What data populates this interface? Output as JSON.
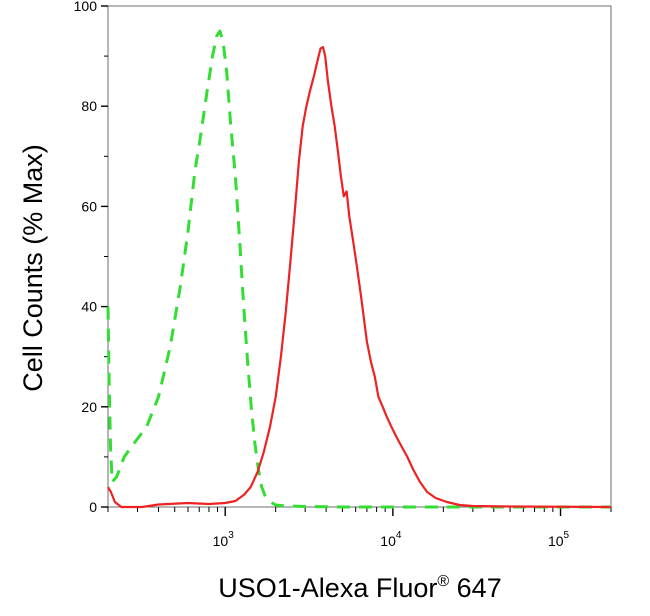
{
  "chart_data": {
    "type": "line",
    "title": "",
    "xlabel": {
      "main": "USO1-Alexa Fluor",
      "sup": "®",
      "tail": " 647"
    },
    "ylabel": "Cell Counts (% Max)",
    "x_scale": "log",
    "xlim": [
      200,
      200000
    ],
    "ylim": [
      0,
      100
    ],
    "y_ticks": [
      {
        "value": 0,
        "label": "0"
      },
      {
        "value": 20,
        "label": "20"
      },
      {
        "value": 40,
        "label": "40"
      },
      {
        "value": 60,
        "label": "60"
      },
      {
        "value": 80,
        "label": "80"
      },
      {
        "value": 100,
        "label": "100"
      }
    ],
    "x_major_ticks": [
      {
        "value": 1000,
        "base": "10",
        "exp": "3"
      },
      {
        "value": 10000,
        "base": "10",
        "exp": "4"
      },
      {
        "value": 100000,
        "base": "10",
        "exp": "5"
      }
    ],
    "grid": false,
    "legend": "none",
    "series": [
      {
        "color": "#33dd33",
        "style": "dashed",
        "points": [
          [
            200,
            40
          ],
          [
            203,
            25
          ],
          [
            207,
            12
          ],
          [
            212,
            5
          ],
          [
            225,
            6
          ],
          [
            250,
            10
          ],
          [
            290,
            13
          ],
          [
            340,
            16
          ],
          [
            400,
            22
          ],
          [
            470,
            32
          ],
          [
            540,
            44
          ],
          [
            600,
            55
          ],
          [
            660,
            67
          ],
          [
            720,
            75
          ],
          [
            780,
            83
          ],
          [
            840,
            90
          ],
          [
            890,
            94
          ],
          [
            930,
            95
          ],
          [
            970,
            93
          ],
          [
            1020,
            87
          ],
          [
            1080,
            76
          ],
          [
            1150,
            66
          ],
          [
            1220,
            53
          ],
          [
            1290,
            40
          ],
          [
            1360,
            29
          ],
          [
            1430,
            20
          ],
          [
            1500,
            13
          ],
          [
            1570,
            8
          ],
          [
            1650,
            4
          ],
          [
            1740,
            2
          ],
          [
            1860,
            1
          ],
          [
            2000,
            0.4
          ],
          [
            2300,
            0.2
          ],
          [
            3000,
            0.1
          ],
          [
            5000,
            0
          ],
          [
            20000,
            0
          ],
          [
            200000,
            0
          ]
        ]
      },
      {
        "color": "#ee2222",
        "style": "solid",
        "points": [
          [
            200,
            4
          ],
          [
            208,
            3
          ],
          [
            220,
            1
          ],
          [
            240,
            0
          ],
          [
            320,
            0
          ],
          [
            400,
            0.5
          ],
          [
            600,
            0.8
          ],
          [
            800,
            0.6
          ],
          [
            1000,
            0.8
          ],
          [
            1150,
            1.2
          ],
          [
            1300,
            2.5
          ],
          [
            1420,
            4
          ],
          [
            1560,
            7
          ],
          [
            1700,
            11
          ],
          [
            1850,
            16
          ],
          [
            2000,
            22
          ],
          [
            2150,
            30
          ],
          [
            2300,
            39
          ],
          [
            2450,
            49
          ],
          [
            2600,
            59
          ],
          [
            2750,
            69
          ],
          [
            2900,
            76
          ],
          [
            3050,
            80
          ],
          [
            3200,
            83
          ],
          [
            3380,
            86
          ],
          [
            3550,
            89
          ],
          [
            3700,
            91.5
          ],
          [
            3830,
            91.8
          ],
          [
            3950,
            90
          ],
          [
            4100,
            85
          ],
          [
            4300,
            80
          ],
          [
            4500,
            76
          ],
          [
            4700,
            71
          ],
          [
            4900,
            66
          ],
          [
            5100,
            62
          ],
          [
            5300,
            63
          ],
          [
            5500,
            58
          ],
          [
            5800,
            53
          ],
          [
            6100,
            48
          ],
          [
            6400,
            43
          ],
          [
            6700,
            38
          ],
          [
            7000,
            33
          ],
          [
            7400,
            29
          ],
          [
            7800,
            26
          ],
          [
            8200,
            22
          ],
          [
            8700,
            20
          ],
          [
            9200,
            18
          ],
          [
            9800,
            16
          ],
          [
            10500,
            14
          ],
          [
            11300,
            12
          ],
          [
            12200,
            10
          ],
          [
            13200,
            7.5
          ],
          [
            14500,
            5
          ],
          [
            16000,
            3
          ],
          [
            18000,
            1.8
          ],
          [
            21000,
            1
          ],
          [
            25000,
            0.4
          ],
          [
            30000,
            0.2
          ],
          [
            50000,
            0.1
          ],
          [
            200000,
            0
          ]
        ]
      }
    ]
  }
}
